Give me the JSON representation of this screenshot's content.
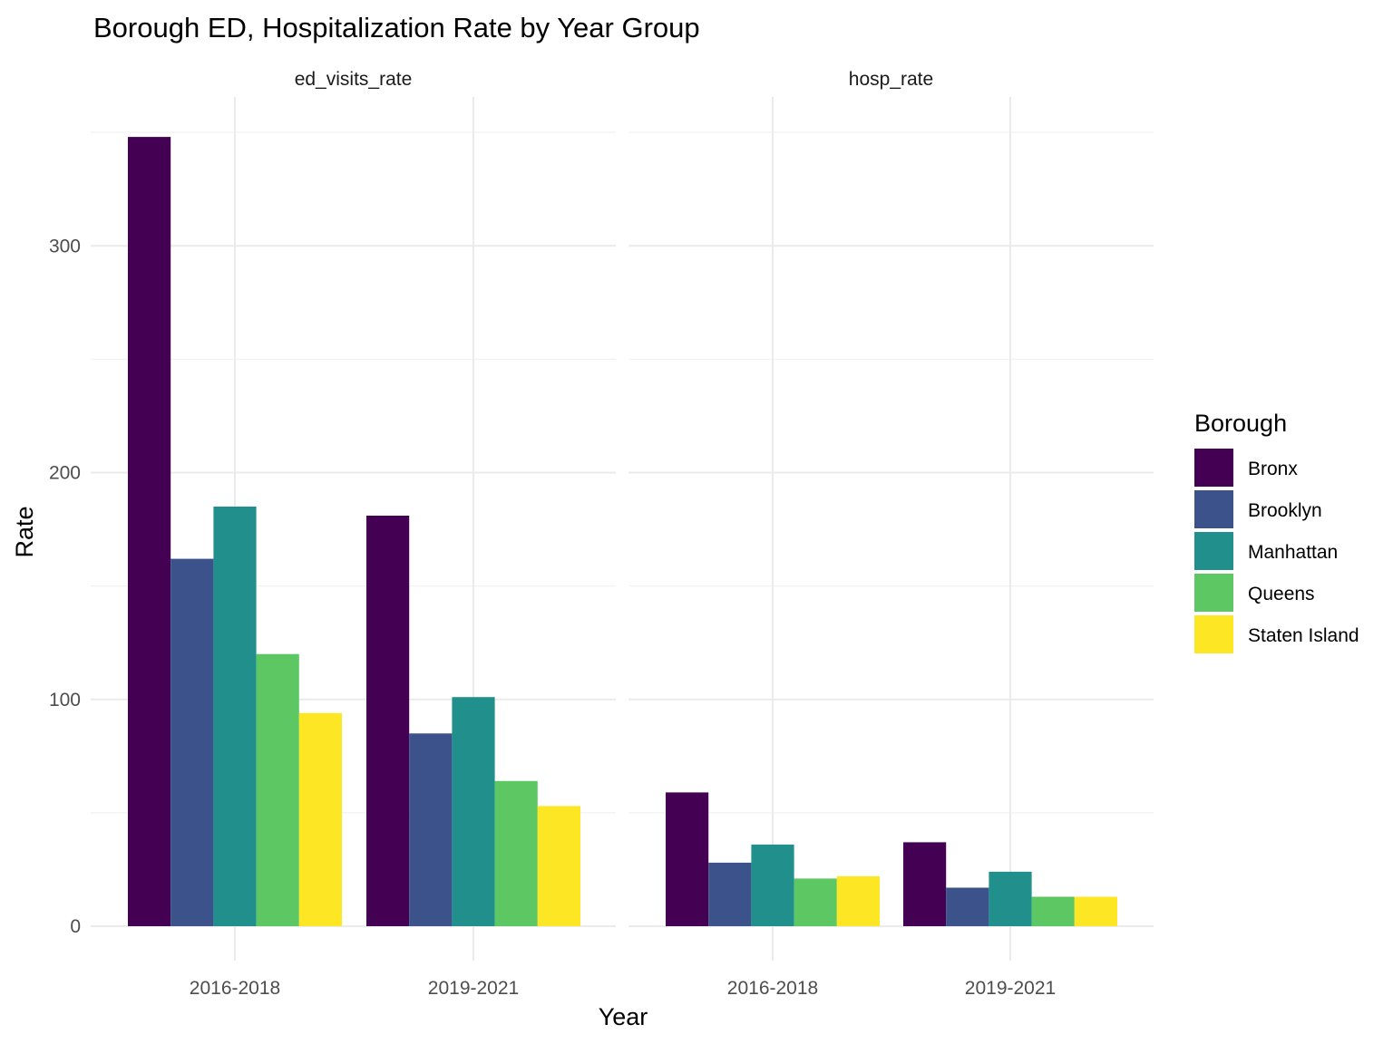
{
  "chart_data": {
    "type": "bar",
    "title": "Borough ED, Hospitalization Rate by Year Group",
    "xlabel": "Year",
    "ylabel": "Rate",
    "ylim": [
      0,
      360
    ],
    "y_ticks": [
      0,
      100,
      200,
      300
    ],
    "categories": [
      "2016-2018",
      "2019-2021"
    ],
    "legend": {
      "title": "Borough",
      "position": "right"
    },
    "grid": true,
    "series": [
      {
        "name": "Bronx",
        "color": "#440154"
      },
      {
        "name": "Brooklyn",
        "color": "#3B528B"
      },
      {
        "name": "Manhattan",
        "color": "#21908C"
      },
      {
        "name": "Queens",
        "color": "#5DC863"
      },
      {
        "name": "Staten Island",
        "color": "#FDE725"
      }
    ],
    "facets": [
      {
        "label": "ed_visits_rate",
        "values": {
          "Bronx": [
            348,
            181
          ],
          "Brooklyn": [
            162,
            85
          ],
          "Manhattan": [
            185,
            101
          ],
          "Queens": [
            120,
            64
          ],
          "Staten Island": [
            94,
            53
          ]
        }
      },
      {
        "label": "hosp_rate",
        "values": {
          "Bronx": [
            59,
            37
          ],
          "Brooklyn": [
            28,
            17
          ],
          "Manhattan": [
            36,
            24
          ],
          "Queens": [
            21,
            13
          ],
          "Staten Island": [
            22,
            13
          ]
        }
      }
    ]
  }
}
